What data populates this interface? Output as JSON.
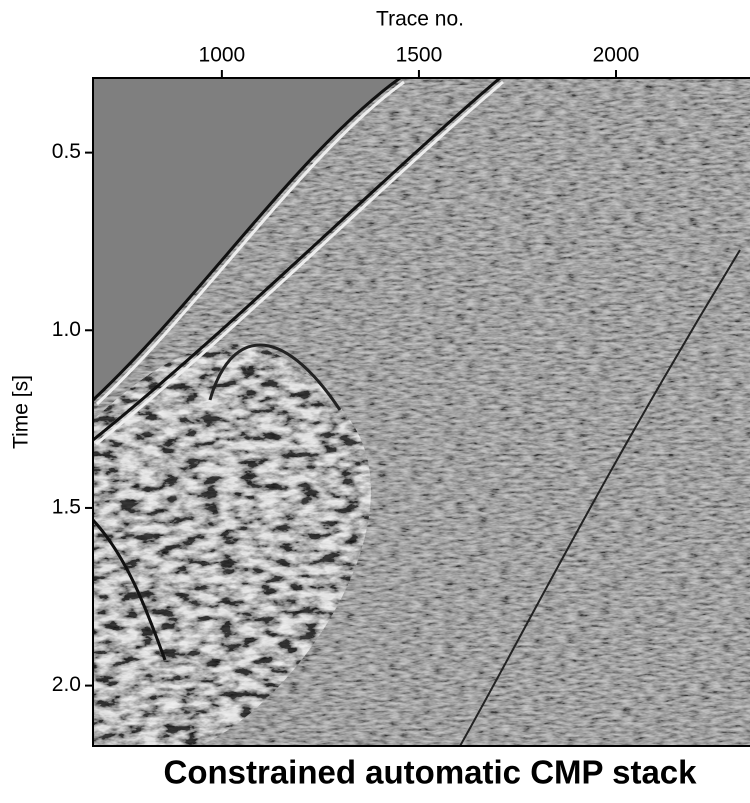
{
  "chart_data": {
    "type": "image",
    "title": "Constrained automatic CMP stack",
    "x_label": "Trace no.",
    "y_label": "Time [s]",
    "xlim": [
      673,
      2340
    ],
    "xticks": [
      1000,
      1500,
      2000
    ],
    "ylim": [
      0.29,
      2.17
    ],
    "yticks": [
      0.5,
      {
        "value": 1,
        "label": "1.0"
      },
      1.5,
      {
        "value": 2,
        "label": "2.0"
      }
    ],
    "x_axis_position": "top",
    "y_inverted": true
  }
}
